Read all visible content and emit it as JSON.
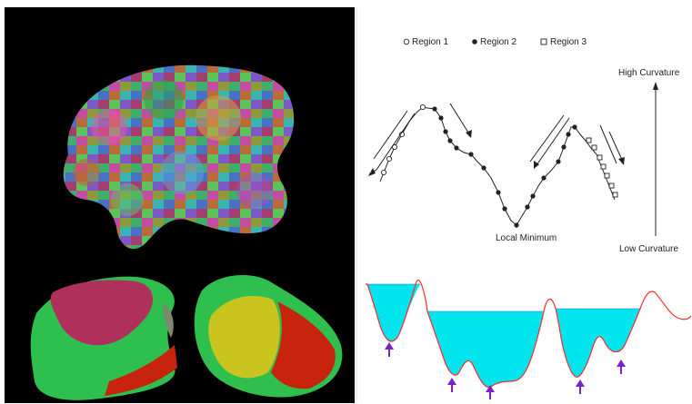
{
  "legend": {
    "region1": "Region 1",
    "region2": "Region 2",
    "region3": "Region 3"
  },
  "axis": {
    "high": "High Curvature",
    "low": "Low Curvature"
  },
  "annotation": {
    "local_minimum": "Local Minimum"
  },
  "colors": {
    "background_left": "#000000",
    "water": "#00e5ee",
    "curve": "#ff2a2a",
    "arrow": "#7a22c9",
    "bone_green": "#2fbf4f",
    "region_magenta": "#b0305c",
    "region_yellow": "#c9c41e",
    "region_red": "#c8230c"
  }
}
